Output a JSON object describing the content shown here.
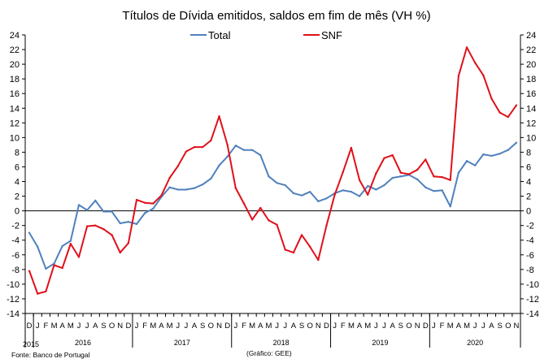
{
  "chart_data": {
    "type": "line",
    "title": "Títulos de Dívida emitidos, saldos em fim de mês (VH %)",
    "ylim": [
      -14,
      24
    ],
    "yticks": [
      -14,
      -12,
      -10,
      -8,
      -6,
      -4,
      -2,
      0,
      2,
      4,
      6,
      8,
      10,
      12,
      14,
      16,
      18,
      20,
      22,
      24
    ],
    "grid": false,
    "legend_position": "top",
    "x": [
      "2015-12",
      "2016-01",
      "2016-02",
      "2016-03",
      "2016-04",
      "2016-05",
      "2016-06",
      "2016-07",
      "2016-08",
      "2016-09",
      "2016-10",
      "2016-11",
      "2016-12",
      "2017-01",
      "2017-02",
      "2017-03",
      "2017-04",
      "2017-05",
      "2017-06",
      "2017-07",
      "2017-08",
      "2017-09",
      "2017-10",
      "2017-11",
      "2017-12",
      "2018-01",
      "2018-02",
      "2018-03",
      "2018-04",
      "2018-05",
      "2018-06",
      "2018-07",
      "2018-08",
      "2018-09",
      "2018-10",
      "2018-11",
      "2018-12",
      "2019-01",
      "2019-02",
      "2019-03",
      "2019-04",
      "2019-05",
      "2019-06",
      "2019-07",
      "2019-08",
      "2019-09",
      "2019-10",
      "2019-11",
      "2019-12",
      "2020-01",
      "2020-02",
      "2020-03",
      "2020-04",
      "2020-05",
      "2020-06",
      "2020-07",
      "2020-08",
      "2020-09",
      "2020-10",
      "2020-11"
    ],
    "month_labels": [
      "D",
      "J",
      "F",
      "M",
      "A",
      "M",
      "J",
      "J",
      "A",
      "S",
      "O",
      "N",
      "D",
      "J",
      "F",
      "M",
      "A",
      "M",
      "J",
      "J",
      "A",
      "S",
      "O",
      "N",
      "D",
      "J",
      "F",
      "M",
      "A",
      "M",
      "J",
      "J",
      "A",
      "S",
      "O",
      "N",
      "D",
      "J",
      "F",
      "M",
      "A",
      "M",
      "J",
      "J",
      "A",
      "S",
      "O",
      "N",
      "D",
      "J",
      "F",
      "M",
      "A",
      "M",
      "J",
      "J",
      "A",
      "S",
      "O",
      "N"
    ],
    "year_labels": [
      {
        "label": "2015",
        "start": 0,
        "end": 0
      },
      {
        "label": "2016",
        "start": 1,
        "end": 12
      },
      {
        "label": "2017",
        "start": 13,
        "end": 24
      },
      {
        "label": "2018",
        "start": 25,
        "end": 36
      },
      {
        "label": "2019",
        "start": 37,
        "end": 48
      },
      {
        "label": "2020",
        "start": 49,
        "end": 59
      }
    ],
    "series": [
      {
        "name": "Total",
        "color": "#4F81BD",
        "values": [
          -3.0,
          -4.9,
          -7.9,
          -7.2,
          -4.8,
          -4.1,
          0.8,
          0.1,
          1.4,
          -0.1,
          -0.1,
          -1.7,
          -1.5,
          -1.8,
          -0.3,
          0.3,
          1.9,
          3.2,
          2.9,
          2.9,
          3.1,
          3.6,
          4.4,
          6.2,
          7.4,
          8.9,
          8.3,
          8.3,
          7.6,
          4.7,
          3.8,
          3.5,
          2.4,
          2.1,
          2.6,
          1.3,
          1.7,
          2.4,
          2.8,
          2.6,
          2.0,
          3.4,
          2.9,
          3.5,
          4.5,
          4.7,
          4.9,
          4.3,
          3.2,
          2.7,
          2.8,
          0.6,
          5.2,
          6.8,
          6.2,
          7.7,
          7.5,
          7.8,
          8.3,
          9.3
        ]
      },
      {
        "name": "SNF",
        "color": "#E0101A",
        "values": [
          -8.2,
          -11.3,
          -11.0,
          -7.4,
          -7.8,
          -4.5,
          -6.3,
          -2.1,
          -2.0,
          -2.5,
          -3.3,
          -5.7,
          -4.4,
          1.5,
          1.1,
          1.0,
          2.1,
          4.5,
          6.1,
          8.1,
          8.7,
          8.7,
          9.6,
          12.9,
          9.0,
          3.1,
          1.0,
          -1.2,
          0.4,
          -1.3,
          -1.9,
          -5.3,
          -5.7,
          -3.3,
          -4.9,
          -6.7,
          -2.0,
          2.2,
          5.3,
          8.6,
          4.2,
          2.2,
          5.1,
          7.2,
          7.6,
          5.2,
          5.0,
          5.6,
          7.0,
          4.7,
          4.6,
          4.2,
          18.4,
          22.3,
          20.2,
          18.5,
          15.3,
          13.4,
          12.8,
          14.4
        ]
      }
    ]
  },
  "notes": {
    "source": "Fonte: Banco de Portugal",
    "credit": "(Gráfico: GEE)"
  }
}
